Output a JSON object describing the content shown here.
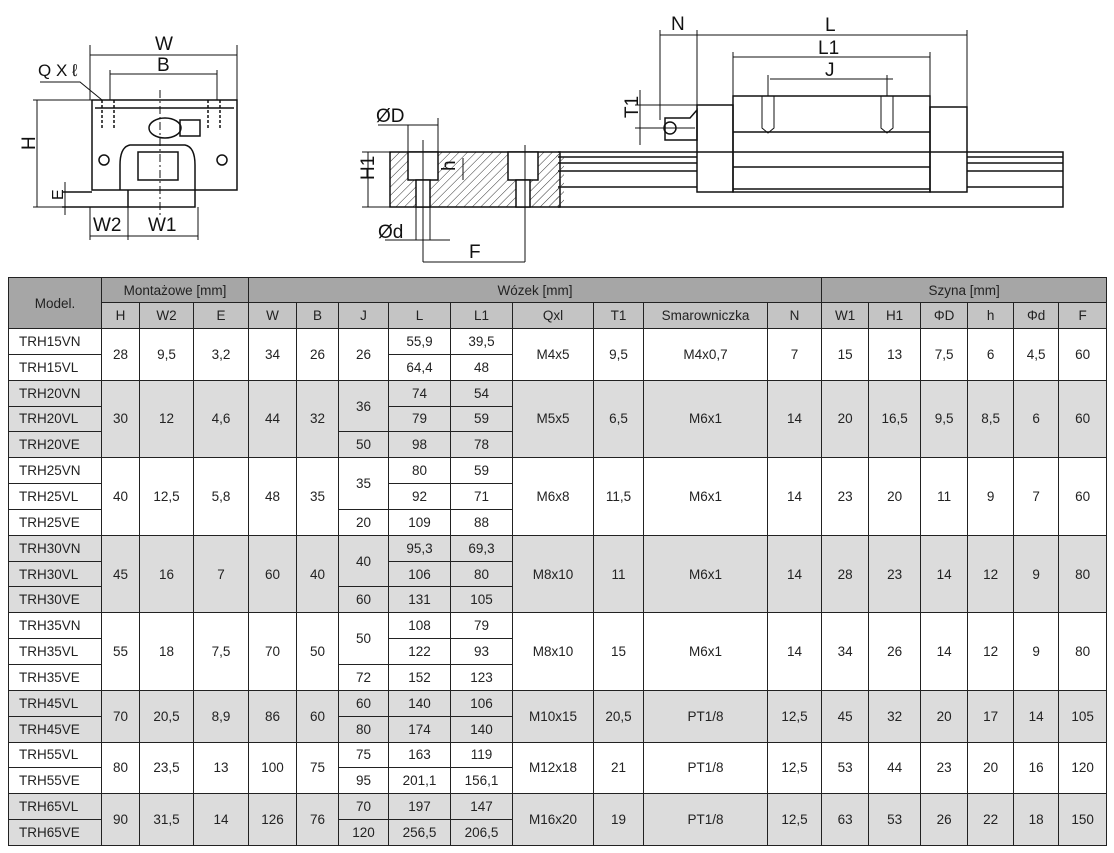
{
  "diagram": {
    "labels": {
      "W": "W",
      "B": "B",
      "QxL": "Q X ℓ",
      "H": "H",
      "E": "E",
      "W2": "W2",
      "W1": "W1",
      "OD": "ØD",
      "H1": "H1",
      "h": "h",
      "Od": "Ød",
      "F": "F",
      "N": "N",
      "L": "L",
      "L1": "L1",
      "J": "J",
      "T1": "T1"
    }
  },
  "colors": {
    "header_group": "#a6a6a6",
    "header_sub": "#c4c4c4",
    "row_shade": "#dcdcdc"
  },
  "table": {
    "model_header": "Model.",
    "group_headers": [
      "Montażowe [mm]",
      "Wózek [mm]",
      "Szyna [mm]"
    ],
    "sub_headers": [
      "H",
      "W2",
      "E",
      "W",
      "B",
      "J",
      "L",
      "L1",
      "Qxl",
      "T1",
      "Smarowniczka",
      "N",
      "W1",
      "H1",
      "ΦD",
      "h",
      "Φd",
      "F"
    ],
    "groups": [
      {
        "models": [
          "TRH15VN",
          "TRH15VL"
        ],
        "H": "28",
        "W2": "9,5",
        "E": "3,2",
        "W": "34",
        "B": "26",
        "J": [
          {
            "v": "26",
            "span": 2
          }
        ],
        "L": [
          "55,9",
          "64,4"
        ],
        "L1": [
          "39,5",
          "48"
        ],
        "Qxl": "M4x5",
        "T1": "9,5",
        "Smarowniczka": "M4x0,7",
        "N": "7",
        "rW1": "15",
        "rH1": "13",
        "PhiD": "7,5",
        "h": "6",
        "Phid": "4,5",
        "F": "60"
      },
      {
        "models": [
          "TRH20VN",
          "TRH20VL",
          "TRH20VE"
        ],
        "H": "30",
        "W2": "12",
        "E": "4,6",
        "W": "44",
        "B": "32",
        "J": [
          {
            "v": "36",
            "span": 2
          },
          {
            "v": "50",
            "span": 1
          }
        ],
        "L": [
          "74",
          "79",
          "98"
        ],
        "L1": [
          "54",
          "59",
          "78"
        ],
        "Qxl": "M5x5",
        "T1": "6,5",
        "Smarowniczka": "M6x1",
        "N": "14",
        "rW1": "20",
        "rH1": "16,5",
        "PhiD": "9,5",
        "h": "8,5",
        "Phid": "6",
        "F": "60"
      },
      {
        "models": [
          "TRH25VN",
          "TRH25VL",
          "TRH25VE"
        ],
        "H": "40",
        "W2": "12,5",
        "E": "5,8",
        "W": "48",
        "B": "35",
        "J": [
          {
            "v": "35",
            "span": 2
          },
          {
            "v": "20",
            "span": 1
          }
        ],
        "L": [
          "80",
          "92",
          "109"
        ],
        "L1": [
          "59",
          "71",
          "88"
        ],
        "Qxl": "M6x8",
        "T1": "11,5",
        "Smarowniczka": "M6x1",
        "N": "14",
        "rW1": "23",
        "rH1": "20",
        "PhiD": "11",
        "h": "9",
        "Phid": "7",
        "F": "60"
      },
      {
        "models": [
          "TRH30VN",
          "TRH30VL",
          "TRH30VE"
        ],
        "H": "45",
        "W2": "16",
        "E": "7",
        "W": "60",
        "B": "40",
        "J": [
          {
            "v": "40",
            "span": 2
          },
          {
            "v": "60",
            "span": 1
          }
        ],
        "L": [
          "95,3",
          "106",
          "131"
        ],
        "L1": [
          "69,3",
          "80",
          "105"
        ],
        "Qxl": "M8x10",
        "T1": "11",
        "Smarowniczka": "M6x1",
        "N": "14",
        "rW1": "28",
        "rH1": "23",
        "PhiD": "14",
        "h": "12",
        "Phid": "9",
        "F": "80"
      },
      {
        "models": [
          "TRH35VN",
          "TRH35VL",
          "TRH35VE"
        ],
        "H": "55",
        "W2": "18",
        "E": "7,5",
        "W": "70",
        "B": "50",
        "J": [
          {
            "v": "50",
            "span": 2
          },
          {
            "v": "72",
            "span": 1
          }
        ],
        "L": [
          "108",
          "122",
          "152"
        ],
        "L1": [
          "79",
          "93",
          "123"
        ],
        "Qxl": "M8x10",
        "T1": "15",
        "Smarowniczka": "M6x1",
        "N": "14",
        "rW1": "34",
        "rH1": "26",
        "PhiD": "14",
        "h": "12",
        "Phid": "9",
        "F": "80"
      },
      {
        "models": [
          "TRH45VL",
          "TRH45VE"
        ],
        "H": "70",
        "W2": "20,5",
        "E": "8,9",
        "W": "86",
        "B": "60",
        "J": [
          {
            "v": "60",
            "span": 1
          },
          {
            "v": "80",
            "span": 1
          }
        ],
        "L": [
          "140",
          "174"
        ],
        "L1": [
          "106",
          "140"
        ],
        "Qxl": "M10x15",
        "T1": "20,5",
        "Smarowniczka": "PT1/8",
        "N": "12,5",
        "rW1": "45",
        "rH1": "32",
        "PhiD": "20",
        "h": "17",
        "Phid": "14",
        "F": "105"
      },
      {
        "models": [
          "TRH55VL",
          "TRH55VE"
        ],
        "H": "80",
        "W2": "23,5",
        "E": "13",
        "W": "100",
        "B": "75",
        "J": [
          {
            "v": "75",
            "span": 1
          },
          {
            "v": "95",
            "span": 1
          }
        ],
        "L": [
          "163",
          "201,1"
        ],
        "L1": [
          "119",
          "156,1"
        ],
        "Qxl": "M12x18",
        "T1": "21",
        "Smarowniczka": "PT1/8",
        "N": "12,5",
        "rW1": "53",
        "rH1": "44",
        "PhiD": "23",
        "h": "20",
        "Phid": "16",
        "F": "120"
      },
      {
        "models": [
          "TRH65VL",
          "TRH65VE"
        ],
        "H": "90",
        "W2": "31,5",
        "E": "14",
        "W": "126",
        "B": "76",
        "J": [
          {
            "v": "70",
            "span": 1
          },
          {
            "v": "120",
            "span": 1
          }
        ],
        "L": [
          "197",
          "256,5"
        ],
        "L1": [
          "147",
          "206,5"
        ],
        "Qxl": "M16x20",
        "T1": "19",
        "Smarowniczka": "PT1/8",
        "N": "12,5",
        "rW1": "63",
        "rH1": "53",
        "PhiD": "26",
        "h": "22",
        "Phid": "18",
        "F": "150"
      }
    ]
  }
}
